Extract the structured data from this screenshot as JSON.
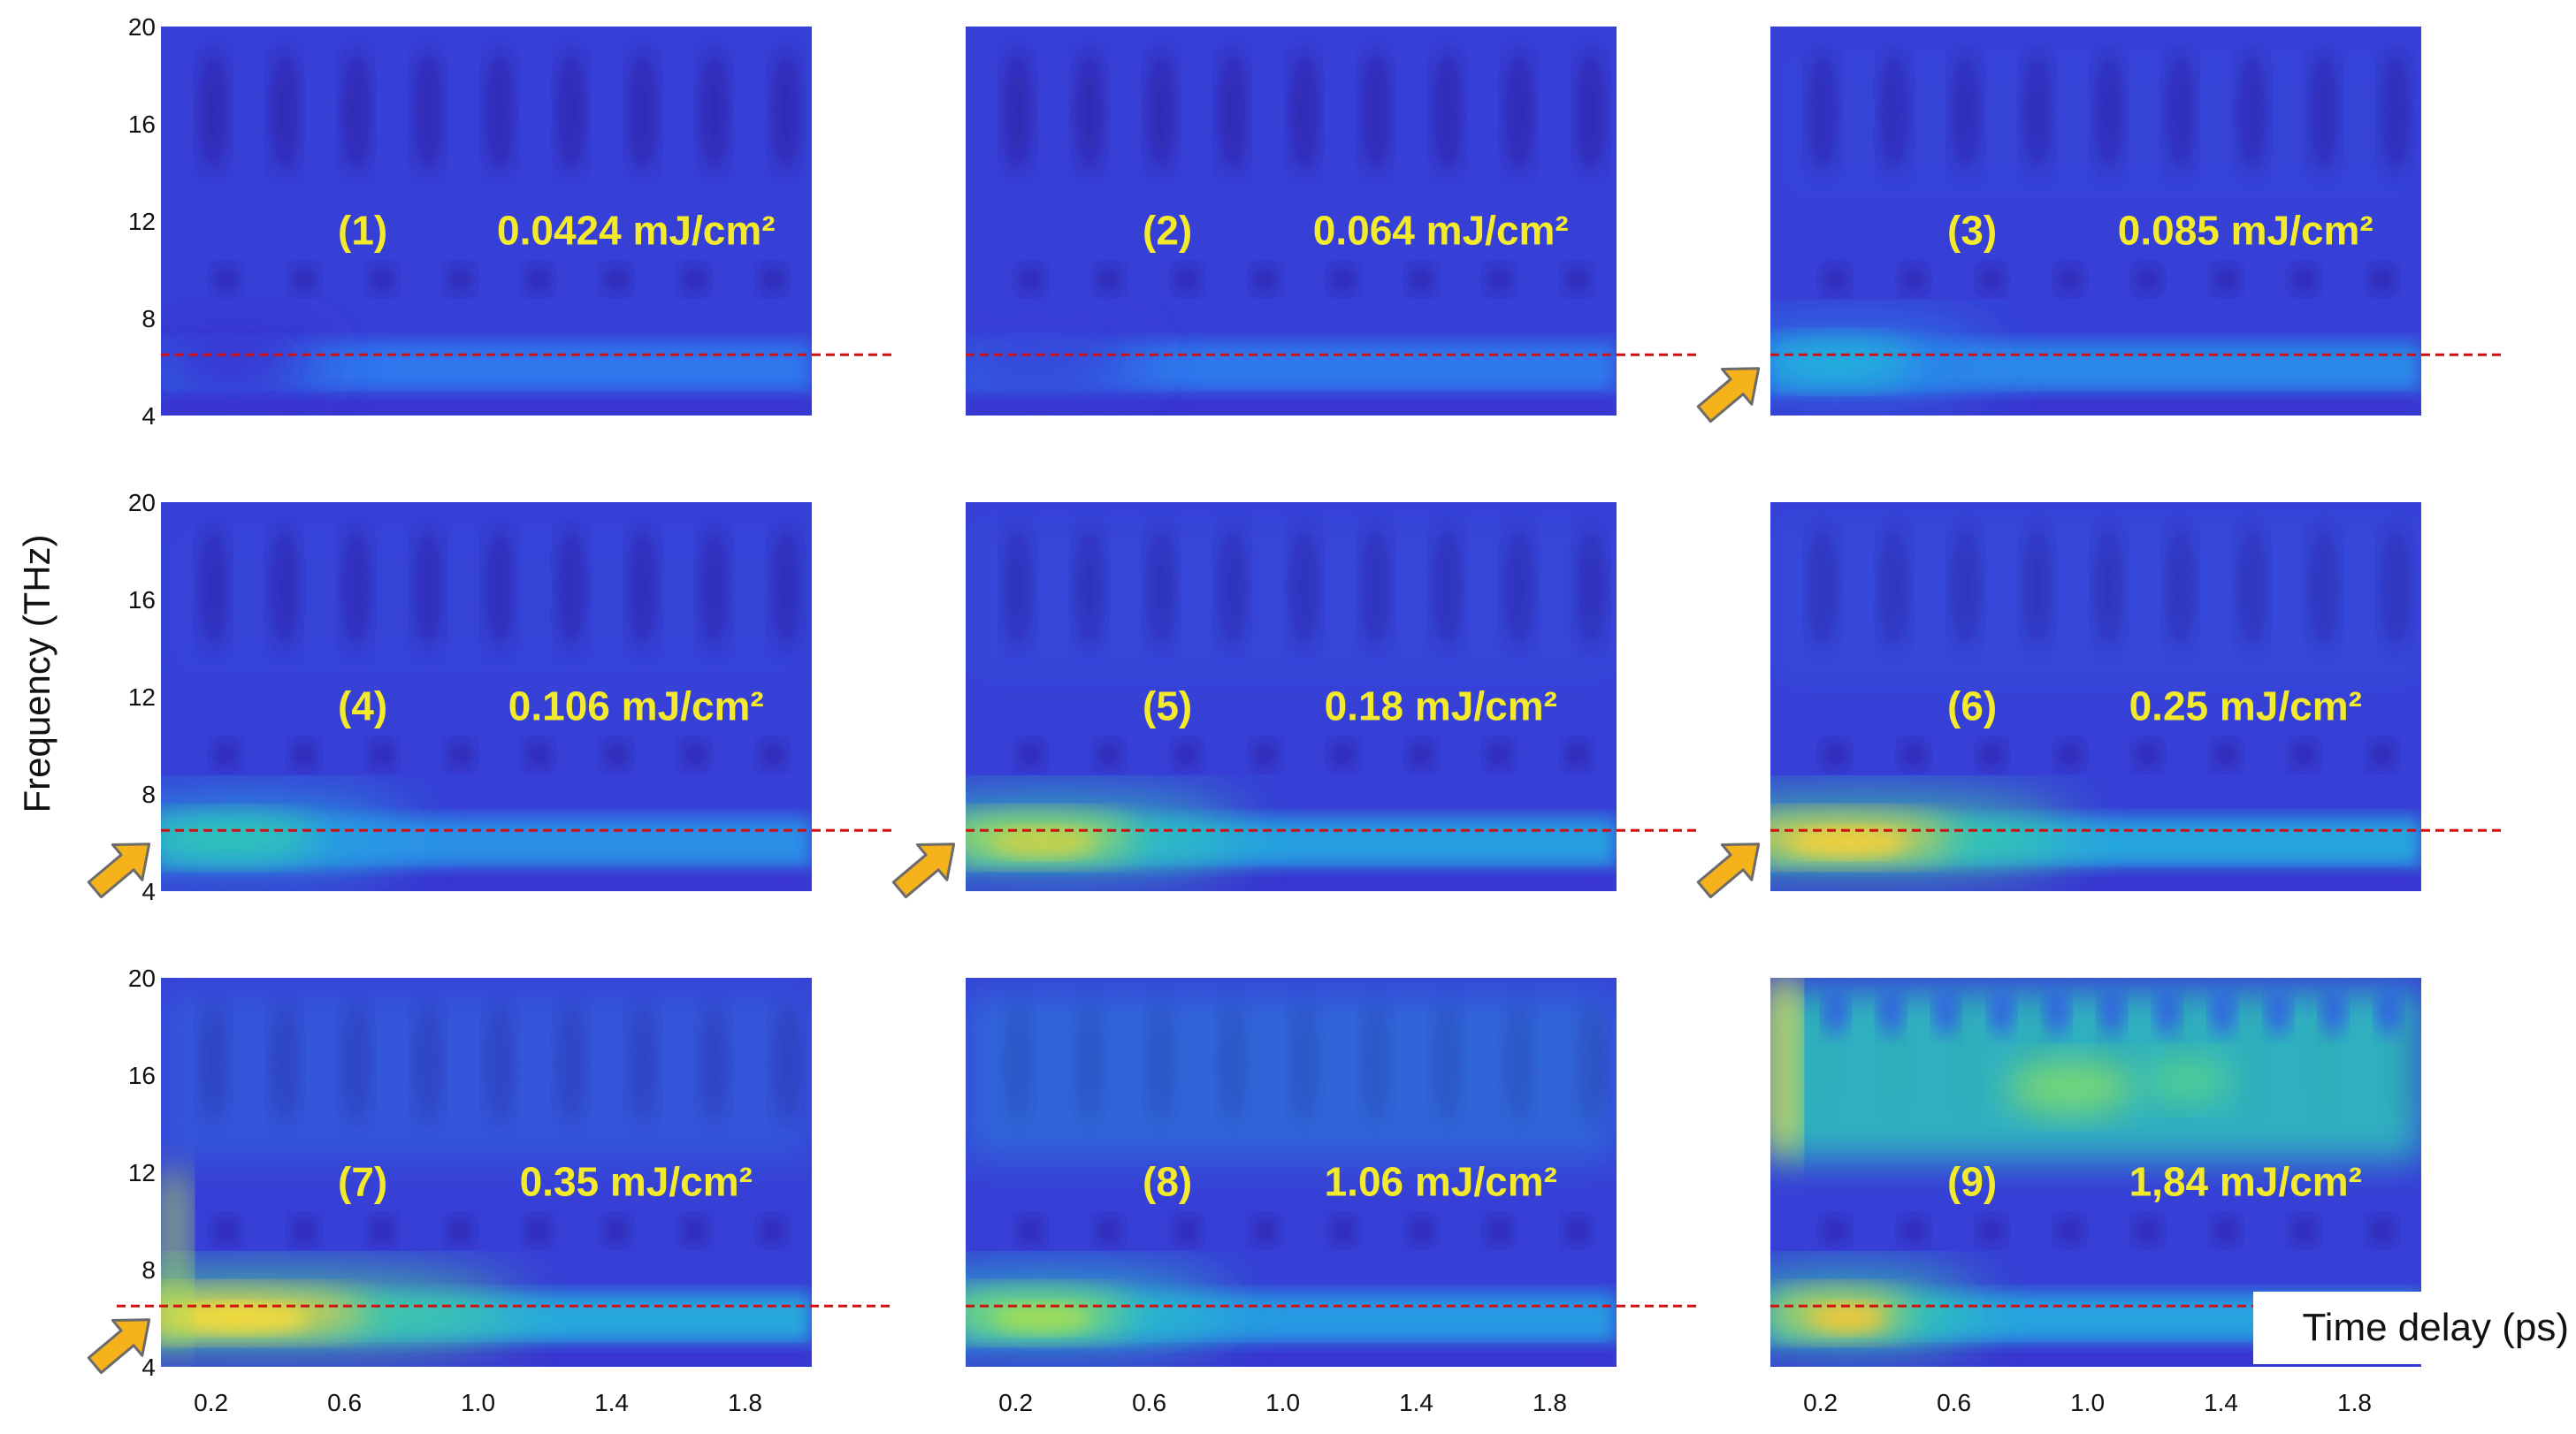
{
  "chart_data": {
    "type": "heatmap",
    "layout": "3x3 grid of time-frequency (wavelet) maps",
    "ylabel": "Frequency (THz)",
    "xlabel": "Time delay (ps)",
    "yticks": [
      "20",
      "16",
      "12",
      "8",
      "4"
    ],
    "xticks": [
      "0.2",
      "0.6",
      "1.0",
      "1.4",
      "1.8"
    ],
    "ylim": [
      4,
      20
    ],
    "xlim": [
      0.05,
      2.0
    ],
    "reference_line_frequency_thz": 6.5,
    "colormap": [
      "#3b26c8",
      "#2f6ef0",
      "#22b8d8",
      "#38d2a2",
      "#9be05a",
      "#f2c63a",
      "#fcf23a"
    ],
    "panels": [
      {
        "label": "(1)",
        "fluence": "0.0424 mJ/cm²",
        "hot_intensity": 0.05,
        "hot_width": 0.2,
        "broadband": 0.0,
        "arrow": false
      },
      {
        "label": "(2)",
        "fluence": "0.064 mJ/cm²",
        "hot_intensity": 0.1,
        "hot_width": 0.25,
        "broadband": 0.0,
        "arrow": false
      },
      {
        "label": "(3)",
        "fluence": "0.085 mJ/cm²",
        "hot_intensity": 0.38,
        "hot_width": 0.4,
        "broadband": 0.05,
        "arrow": true
      },
      {
        "label": "(4)",
        "fluence": "0.106 mJ/cm²",
        "hot_intensity": 0.52,
        "hot_width": 0.5,
        "broadband": 0.05,
        "arrow": true
      },
      {
        "label": "(5)",
        "fluence": "0.18 mJ/cm²",
        "hot_intensity": 0.8,
        "hot_width": 0.6,
        "broadband": 0.08,
        "arrow": true
      },
      {
        "label": "(6)",
        "fluence": "0.25 mJ/cm²",
        "hot_intensity": 0.92,
        "hot_width": 0.7,
        "broadband": 0.1,
        "arrow": true
      },
      {
        "label": "(7)",
        "fluence": "0.35 mJ/cm²",
        "hot_intensity": 0.97,
        "hot_width": 0.9,
        "broadband": 0.2,
        "arrow": true
      },
      {
        "label": "(8)",
        "fluence": "1.06 mJ/cm²",
        "hot_intensity": 0.72,
        "hot_width": 0.55,
        "broadband": 0.28,
        "arrow": false
      },
      {
        "label": "(9)",
        "fluence": "1,84 mJ/cm²",
        "hot_intensity": 0.88,
        "hot_width": 0.35,
        "broadband": 0.6,
        "arrow": false
      }
    ]
  }
}
